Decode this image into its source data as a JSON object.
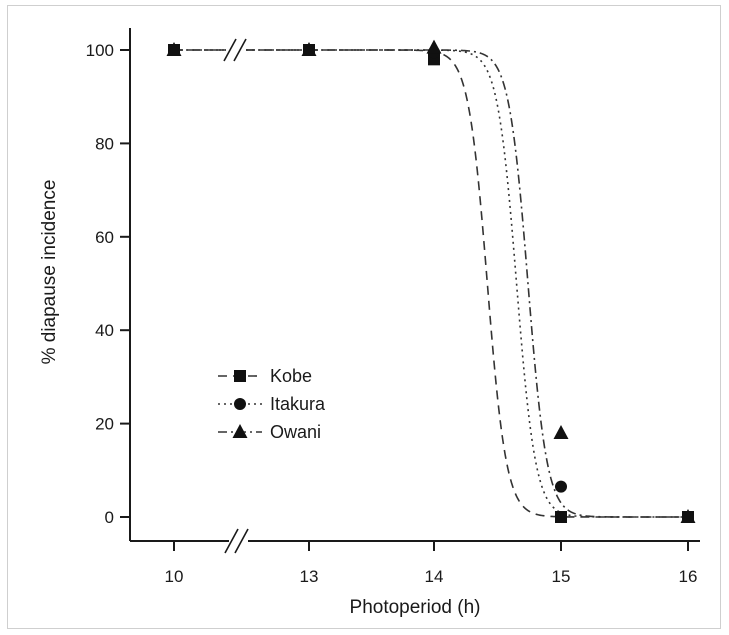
{
  "chart_data": {
    "type": "scatter",
    "xlabel": "Photoperiod (h)",
    "ylabel": "% diapause incidence",
    "x_ticks": [
      "10",
      "13",
      "14",
      "15",
      "16"
    ],
    "y_ticks": [
      "0",
      "20",
      "40",
      "60",
      "80",
      "100"
    ],
    "ylim": [
      0,
      100
    ],
    "xlim": [
      13.7,
      16.1
    ],
    "x_axis_break": "between 10 and 13",
    "grid": false,
    "legend_position": "left-middle",
    "series": [
      {
        "name": "Kobe",
        "marker": "square",
        "line_style": "dashed",
        "x": [
          10,
          13,
          14,
          15,
          16
        ],
        "y": [
          100,
          100,
          98,
          0,
          0
        ],
        "fit_midpoint": 14.42,
        "fit_slope": 0.075
      },
      {
        "name": "Itakura",
        "marker": "circle",
        "line_style": "dotted",
        "x": [
          10,
          13,
          14,
          15,
          16
        ],
        "y": [
          100,
          100,
          99.5,
          6.5,
          0
        ],
        "fit_midpoint": 14.65,
        "fit_slope": 0.075
      },
      {
        "name": "Owani",
        "marker": "triangle",
        "line_style": "dash-dot",
        "x": [
          10,
          13,
          14,
          15,
          16
        ],
        "y": [
          100,
          100,
          100.5,
          18,
          0
        ],
        "fit_midpoint": 14.74,
        "fit_slope": 0.075
      }
    ]
  }
}
